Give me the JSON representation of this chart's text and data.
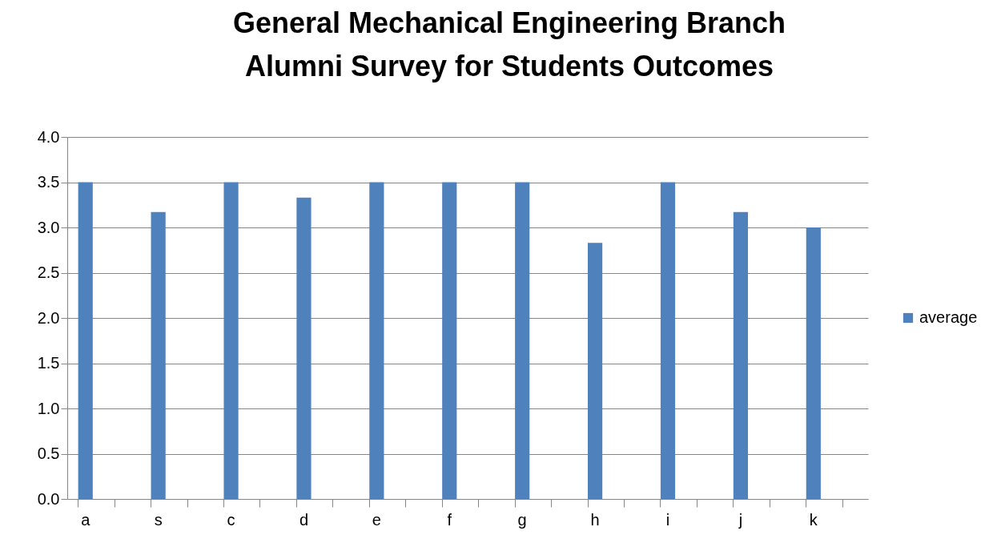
{
  "chart_data": {
    "type": "bar",
    "title": "General Mechanical Engineering Branch\nAlumni Survey for Students Outcomes",
    "categories": [
      "a",
      null,
      "s",
      null,
      "c",
      null,
      "d",
      null,
      "e",
      null,
      "f",
      null,
      "g",
      null,
      "h",
      null,
      "i",
      null,
      "j",
      null,
      "k",
      null
    ],
    "series": [
      {
        "name": "average",
        "color": "#4f81bd",
        "values": [
          3.5,
          null,
          3.17,
          null,
          3.5,
          null,
          3.33,
          null,
          3.5,
          null,
          3.5,
          null,
          3.5,
          null,
          2.83,
          null,
          3.5,
          null,
          3.17,
          null,
          3.0,
          null
        ]
      }
    ],
    "ylim": [
      0,
      4
    ],
    "yticks": [
      {
        "value": 0,
        "label": "0.0"
      },
      {
        "value": 0.5,
        "label": "0.5"
      },
      {
        "value": 1,
        "label": "1.0"
      },
      {
        "value": 1.5,
        "label": "1.5"
      },
      {
        "value": 2,
        "label": "2.0"
      },
      {
        "value": 2.5,
        "label": "2.5"
      },
      {
        "value": 3,
        "label": "3.0"
      },
      {
        "value": 3.5,
        "label": "3.5"
      },
      {
        "value": 4,
        "label": "4.0"
      }
    ],
    "grid": "y",
    "legend": "right"
  }
}
